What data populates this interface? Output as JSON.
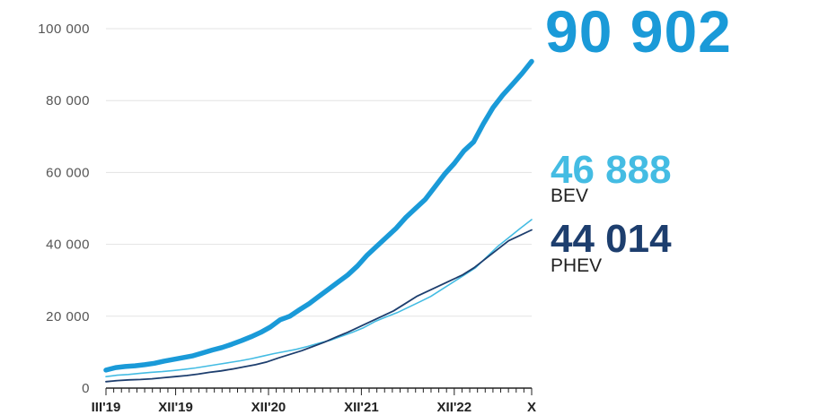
{
  "chart_data": {
    "type": "line",
    "ylim": [
      0,
      100000
    ],
    "yticks": [
      {
        "value": 0,
        "label": "0"
      },
      {
        "value": 20000,
        "label": "20 000"
      },
      {
        "value": 40000,
        "label": "40 000"
      },
      {
        "value": 60000,
        "label": "60 000"
      },
      {
        "value": 80000,
        "label": "80 000"
      },
      {
        "value": 100000,
        "label": "100 000"
      }
    ],
    "xticks": [
      {
        "index": 0,
        "label": "III'19"
      },
      {
        "index": 9,
        "label": "XII'19"
      },
      {
        "index": 21,
        "label": "XII'20"
      },
      {
        "index": 33,
        "label": "XII'21"
      },
      {
        "index": 45,
        "label": "XII'22"
      },
      {
        "index": 55,
        "label": "X"
      }
    ],
    "grid": true,
    "series": [
      {
        "key": "total",
        "color": "#1a9ad8",
        "values": [
          5000,
          5700,
          6000,
          6200,
          6500,
          6900,
          7500,
          8000,
          8500,
          9000,
          9800,
          10600,
          11300,
          12200,
          13200,
          14300,
          15500,
          17000,
          19000,
          20000,
          21800,
          23500,
          25500,
          27500,
          29500,
          31500,
          34000,
          37000,
          39500,
          42000,
          44500,
          47500,
          50000,
          52500,
          56000,
          59500,
          62500,
          66000,
          68500,
          73500,
          78000,
          81500,
          84500,
          87500,
          90902
        ]
      },
      {
        "key": "bev",
        "name": "BEV",
        "color": "#44bce3",
        "values": [
          3200,
          3600,
          3800,
          4100,
          4400,
          4600,
          4900,
          5200,
          5600,
          6100,
          6600,
          7100,
          7600,
          8200,
          8900,
          9600,
          10200,
          10800,
          11600,
          12500,
          13300,
          14400,
          15500,
          16800,
          18500,
          19800,
          21000,
          22500,
          24000,
          25500,
          27500,
          29500,
          31500,
          33500,
          36500,
          39500,
          42000,
          44500,
          46888
        ]
      },
      {
        "key": "phev",
        "name": "PHEV",
        "color": "#1d3e6e",
        "values": [
          1800,
          2100,
          2300,
          2400,
          2600,
          2900,
          3200,
          3500,
          3900,
          4400,
          4800,
          5300,
          5900,
          6500,
          7300,
          8400,
          9400,
          10400,
          11600,
          12800,
          14200,
          15500,
          17000,
          18500,
          20000,
          21500,
          23500,
          25500,
          27000,
          28500,
          30000,
          31500,
          33500,
          36000,
          38500,
          41000,
          42500,
          44014
        ]
      }
    ],
    "headline": {
      "total_value": "90 902",
      "bev_value": "46 888",
      "bev_label": "BEV",
      "phev_value": "44 014",
      "phev_label": "PHEV"
    }
  }
}
